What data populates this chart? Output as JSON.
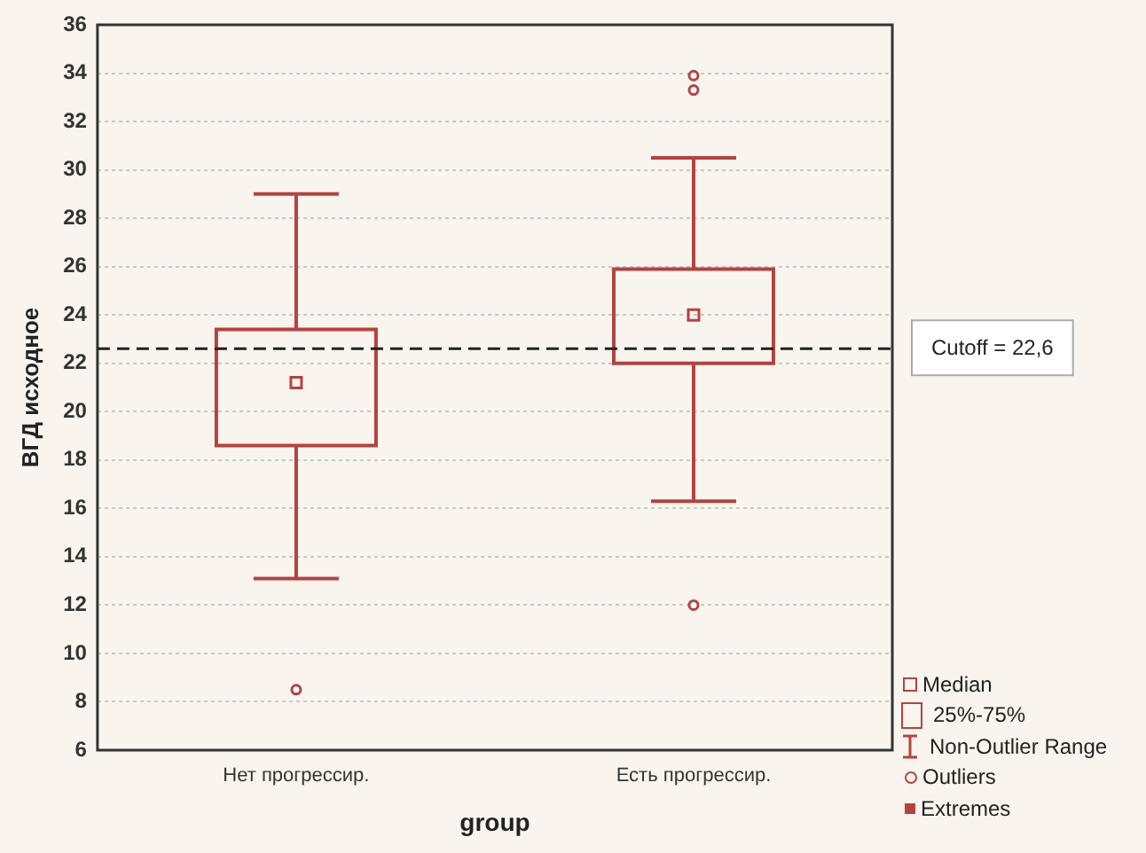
{
  "chart_data": {
    "type": "box",
    "xlabel": "group",
    "ylabel": "ВГД исходное",
    "categories": [
      "Нет прогрессир.",
      "Есть прогрессир."
    ],
    "color": "#b5423f",
    "boxes": [
      {
        "low": 13.1,
        "q1": 18.6,
        "median": 21.2,
        "q3": 23.4,
        "high": 29.0,
        "outliers": [
          8.5
        ]
      },
      {
        "low": 16.3,
        "q1": 22.0,
        "median": 24.0,
        "q3": 25.9,
        "high": 30.5,
        "outliers": [
          12.0,
          33.3,
          33.9
        ]
      }
    ],
    "ylim": [
      6,
      36
    ],
    "yticks": [
      6,
      8,
      10,
      12,
      14,
      16,
      18,
      20,
      22,
      24,
      26,
      28,
      30,
      32,
      34,
      36
    ],
    "grid": "y",
    "ref_lines": [
      {
        "axis": "y",
        "value": 22.6,
        "label": "Cutoff = 22,6",
        "color": "#222222",
        "line_style": "dashed"
      }
    ],
    "annotations": [
      "Median",
      "25%-75%",
      "Non-Outlier Range",
      "Outliers",
      "Extremes"
    ]
  }
}
